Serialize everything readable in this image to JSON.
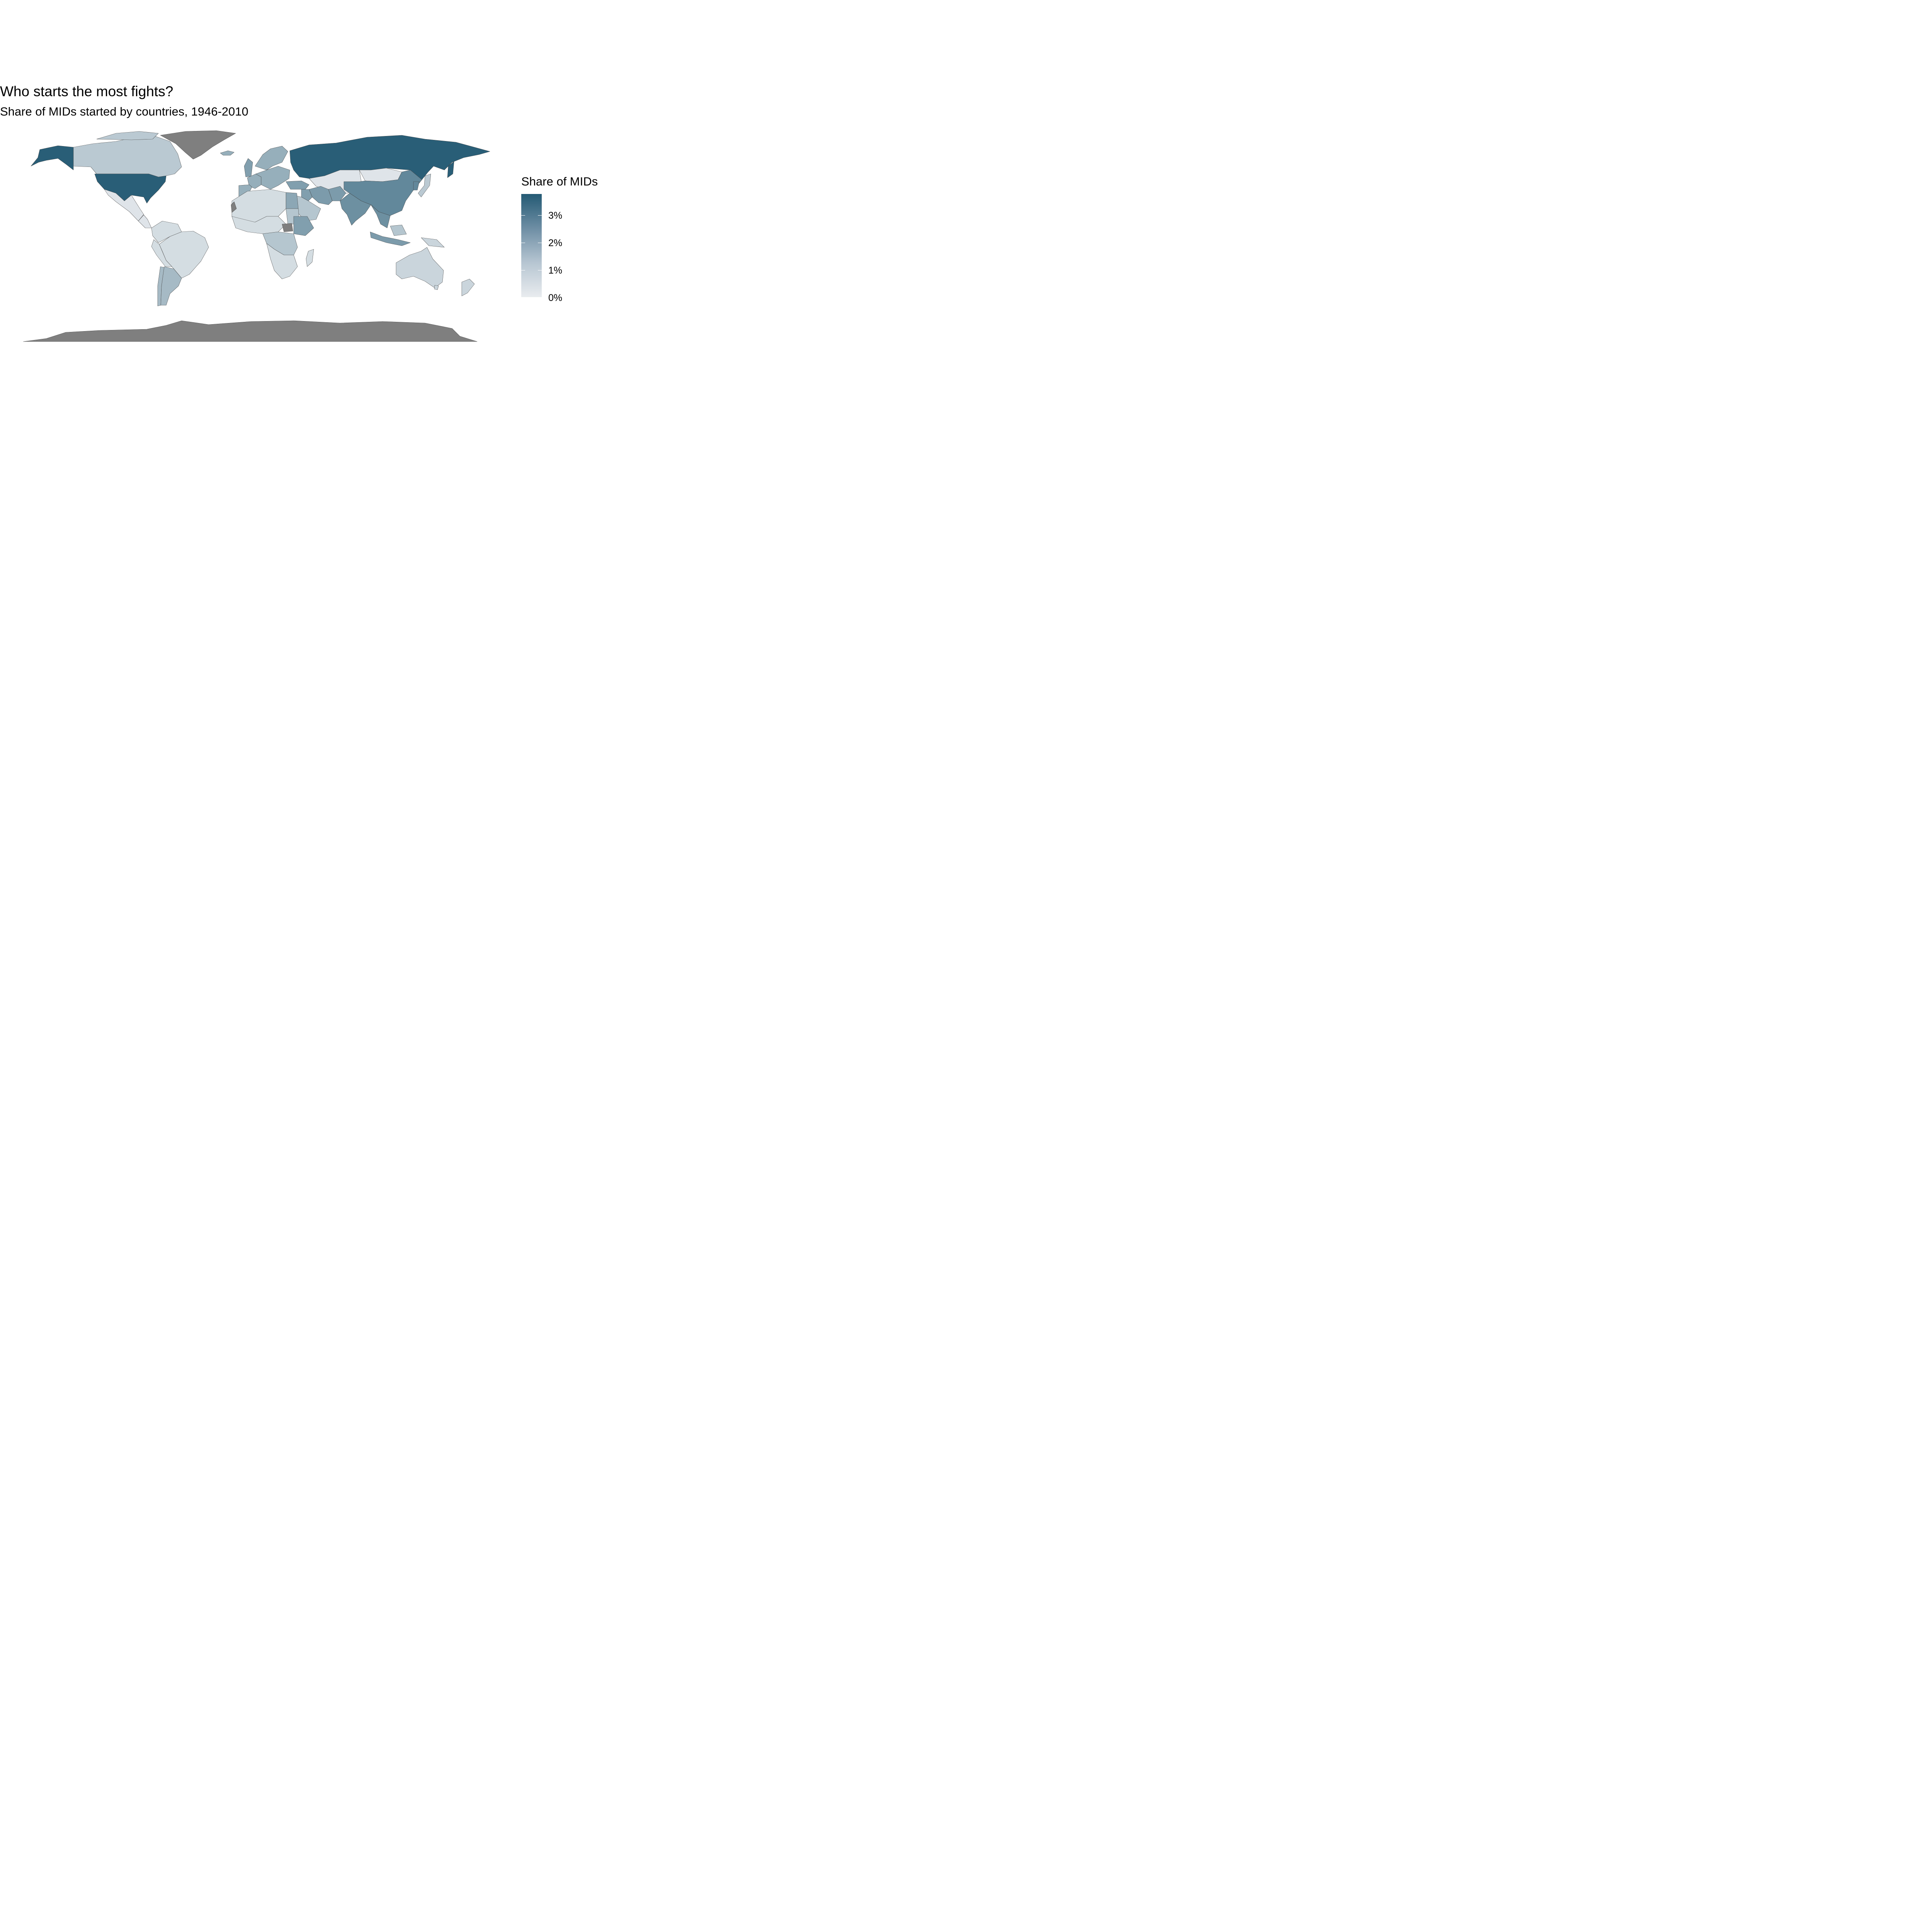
{
  "chart": {
    "title": "Who starts the most fights?",
    "subtitle": "Share of MIDs started by countries, 1946-2010"
  },
  "legend": {
    "title": "Share of MIDs",
    "ticks": [
      "3%",
      "2%",
      "1%",
      "0%"
    ],
    "color_low": "#e9ecef",
    "color_high": "#245a74",
    "na_color": "#7f7f7f"
  },
  "chart_data": {
    "type": "heatmap",
    "title": "Who starts the most fights?",
    "subtitle": "Share of MIDs started by countries, 1946-2010",
    "legend_title": "Share of MIDs",
    "scale_ticks": [
      "0%",
      "1%",
      "2%",
      "3%"
    ],
    "scale_range": [
      0,
      0.038
    ],
    "regions": [
      {
        "name": "United States",
        "value": 0.037
      },
      {
        "name": "Russia",
        "value": 0.037
      },
      {
        "name": "China",
        "value": 0.026
      },
      {
        "name": "India",
        "value": 0.024
      },
      {
        "name": "Iran",
        "value": 0.021
      },
      {
        "name": "Turkey",
        "value": 0.02
      },
      {
        "name": "Egypt",
        "value": 0.018
      },
      {
        "name": "United Kingdom",
        "value": 0.02
      },
      {
        "name": "Iraq",
        "value": 0.02
      },
      {
        "name": "France",
        "value": 0.016
      },
      {
        "name": "Argentina",
        "value": 0.013
      },
      {
        "name": "Saudi Arabia",
        "value": 0.01
      },
      {
        "name": "Canada",
        "value": 0.009
      },
      {
        "name": "Australia",
        "value": 0.006
      },
      {
        "name": "Brazil",
        "value": 0.004
      },
      {
        "name": "Mexico",
        "value": 0.002
      },
      {
        "name": "Greenland",
        "value": null
      },
      {
        "name": "Antarctica",
        "value": null
      }
    ]
  }
}
